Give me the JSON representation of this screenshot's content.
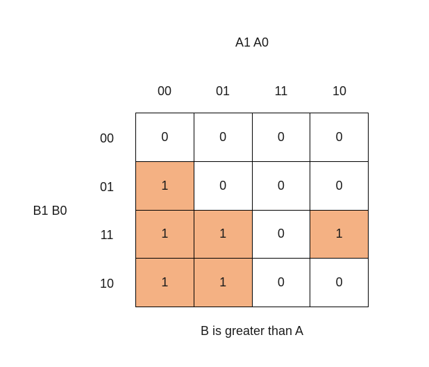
{
  "top_variable_label": "A1 A0",
  "side_variable_label": "B1 B0",
  "caption": "B is greater than A",
  "column_labels": [
    "00",
    "01",
    "11",
    "10"
  ],
  "row_labels": [
    "00",
    "01",
    "11",
    "10"
  ],
  "cells": [
    [
      "0",
      "0",
      "0",
      "0"
    ],
    [
      "1",
      "0",
      "0",
      "0"
    ],
    [
      "1",
      "1",
      "0",
      "1"
    ],
    [
      "1",
      "1",
      "0",
      "0"
    ]
  ],
  "highlight": [
    [
      false,
      false,
      false,
      false
    ],
    [
      true,
      false,
      false,
      false
    ],
    [
      true,
      true,
      false,
      true
    ],
    [
      true,
      true,
      false,
      false
    ]
  ],
  "colors": {
    "highlight_fill": "#f4b183",
    "grid_line": "#000000"
  }
}
